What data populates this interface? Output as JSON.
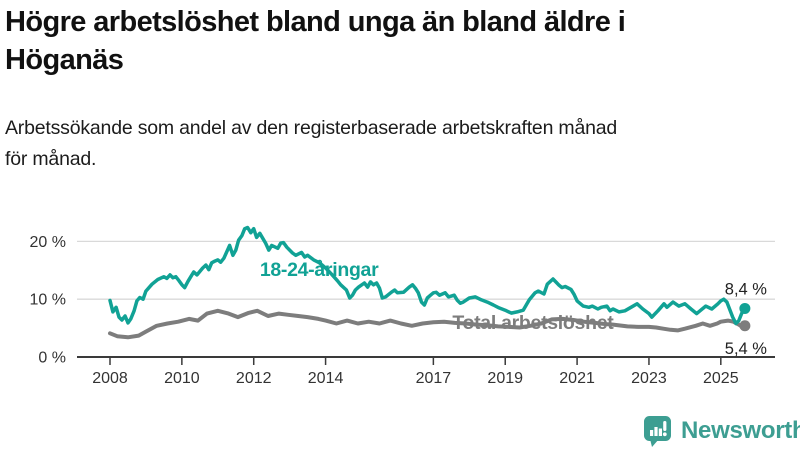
{
  "header": {
    "title_lines": [
      "Högre arbetslöshet bland unga än bland äldre i",
      "Höganäs"
    ],
    "subtitle_lines": [
      "Arbetssökande som andel av den registerbaserade arbetskraften månad",
      "för månad."
    ]
  },
  "branding": {
    "logo_text": "Newsworthy",
    "logo_icon": "newsworthy-speech-bubble-bar-chart-icon",
    "logo_color": "#3d9e92"
  },
  "colors": {
    "youth_line": "#11a295",
    "total_line": "#7d7d7d",
    "grid": "#d9d9d9",
    "axis": "#3a3a3a",
    "tick_text": "#333333",
    "annotation_text": "#222222"
  },
  "chart_data": {
    "type": "line",
    "title": "",
    "xlabel": "",
    "ylabel": "",
    "x_unit": "year (monthly observations)",
    "xlim": [
      2007.6,
      2026.5
    ],
    "ylim": [
      0,
      24
    ],
    "grid": "horizontal",
    "y_ticks": [
      {
        "value": 0,
        "label": "0 %"
      },
      {
        "value": 10,
        "label": "10 %"
      },
      {
        "value": 20,
        "label": "20 %"
      }
    ],
    "x_ticks": [
      {
        "value": 2008,
        "label": "2008"
      },
      {
        "value": 2010,
        "label": "2010"
      },
      {
        "value": 2012,
        "label": "2012"
      },
      {
        "value": 2014,
        "label": "2014"
      },
      {
        "value": 2017,
        "label": "2017"
      },
      {
        "value": 2019,
        "label": "2019"
      },
      {
        "value": 2021,
        "label": "2021"
      },
      {
        "value": 2023,
        "label": "2023"
      },
      {
        "value": 2025,
        "label": "2025"
      }
    ],
    "series": [
      {
        "name": "Total arbetslöshet",
        "id": "total",
        "color": "#7d7d7d",
        "line_width": 4,
        "label_anchor": {
          "year": 2019.77,
          "value": 6.05
        },
        "end_label": "5,4 %",
        "end_value": 5.4,
        "points": [
          [
            2008.0,
            4.1
          ],
          [
            2008.2,
            3.6
          ],
          [
            2008.5,
            3.4
          ],
          [
            2008.8,
            3.7
          ],
          [
            2009.0,
            4.4
          ],
          [
            2009.3,
            5.4
          ],
          [
            2009.6,
            5.8
          ],
          [
            2009.9,
            6.1
          ],
          [
            2010.2,
            6.6
          ],
          [
            2010.45,
            6.3
          ],
          [
            2010.7,
            7.5
          ],
          [
            2011.0,
            8.0
          ],
          [
            2011.3,
            7.5
          ],
          [
            2011.56,
            6.9
          ],
          [
            2011.84,
            7.6
          ],
          [
            2012.1,
            8.0
          ],
          [
            2012.4,
            7.1
          ],
          [
            2012.7,
            7.5
          ],
          [
            2012.96,
            7.3
          ],
          [
            2013.24,
            7.1
          ],
          [
            2013.5,
            6.9
          ],
          [
            2013.8,
            6.6
          ],
          [
            2014.0,
            6.3
          ],
          [
            2014.3,
            5.8
          ],
          [
            2014.6,
            6.3
          ],
          [
            2014.9,
            5.8
          ],
          [
            2015.2,
            6.1
          ],
          [
            2015.5,
            5.8
          ],
          [
            2015.8,
            6.3
          ],
          [
            2016.1,
            5.8
          ],
          [
            2016.4,
            5.4
          ],
          [
            2016.7,
            5.8
          ],
          [
            2017.0,
            6.0
          ],
          [
            2017.3,
            6.1
          ],
          [
            2017.6,
            5.9
          ],
          [
            2017.9,
            5.8
          ],
          [
            2018.2,
            5.6
          ],
          [
            2018.5,
            5.5
          ],
          [
            2018.8,
            5.3
          ],
          [
            2019.1,
            5.2
          ],
          [
            2019.4,
            5.1
          ],
          [
            2019.7,
            5.4
          ],
          [
            2020.0,
            5.8
          ],
          [
            2020.3,
            6.5
          ],
          [
            2020.6,
            6.6
          ],
          [
            2020.9,
            6.4
          ],
          [
            2021.2,
            6.1
          ],
          [
            2021.5,
            5.9
          ],
          [
            2021.8,
            5.7
          ],
          [
            2022.0,
            5.6
          ],
          [
            2022.4,
            5.3
          ],
          [
            2022.7,
            5.2
          ],
          [
            2023.0,
            5.2
          ],
          [
            2023.2,
            5.1
          ],
          [
            2023.4,
            4.9
          ],
          [
            2023.6,
            4.7
          ],
          [
            2023.8,
            4.6
          ],
          [
            2024.0,
            4.9
          ],
          [
            2024.3,
            5.4
          ],
          [
            2024.5,
            5.8
          ],
          [
            2024.7,
            5.4
          ],
          [
            2024.9,
            5.8
          ],
          [
            2025.0,
            6.1
          ],
          [
            2025.2,
            6.3
          ],
          [
            2025.35,
            6.1
          ],
          [
            2025.5,
            5.6
          ],
          [
            2025.58,
            5.3
          ],
          [
            2025.67,
            5.4
          ]
        ]
      },
      {
        "name": "18-24-åringar",
        "id": "youth",
        "color": "#11a295",
        "line_width": 3.5,
        "label_anchor": {
          "year": 2013.82,
          "value": 15.2
        },
        "end_label": "8,4 %",
        "end_value": 8.4,
        "points": [
          [
            2008.0,
            9.8
          ],
          [
            2008.08,
            7.8
          ],
          [
            2008.17,
            8.6
          ],
          [
            2008.25,
            6.9
          ],
          [
            2008.33,
            6.4
          ],
          [
            2008.42,
            7.1
          ],
          [
            2008.5,
            5.9
          ],
          [
            2008.58,
            6.6
          ],
          [
            2008.67,
            8.0
          ],
          [
            2008.75,
            9.7
          ],
          [
            2008.83,
            10.3
          ],
          [
            2008.92,
            10.0
          ],
          [
            2009.0,
            11.4
          ],
          [
            2009.17,
            12.6
          ],
          [
            2009.33,
            13.4
          ],
          [
            2009.5,
            13.9
          ],
          [
            2009.58,
            13.6
          ],
          [
            2009.67,
            14.2
          ],
          [
            2009.75,
            13.7
          ],
          [
            2009.83,
            13.9
          ],
          [
            2009.92,
            13.2
          ],
          [
            2010.0,
            12.5
          ],
          [
            2010.08,
            12.0
          ],
          [
            2010.17,
            13.1
          ],
          [
            2010.25,
            13.9
          ],
          [
            2010.33,
            14.7
          ],
          [
            2010.42,
            14.2
          ],
          [
            2010.58,
            15.4
          ],
          [
            2010.67,
            15.9
          ],
          [
            2010.75,
            15.1
          ],
          [
            2010.83,
            16.3
          ],
          [
            2010.92,
            16.6
          ],
          [
            2011.0,
            16.8
          ],
          [
            2011.08,
            16.4
          ],
          [
            2011.17,
            17.1
          ],
          [
            2011.33,
            19.3
          ],
          [
            2011.42,
            17.6
          ],
          [
            2011.5,
            18.5
          ],
          [
            2011.58,
            20.2
          ],
          [
            2011.67,
            21.0
          ],
          [
            2011.75,
            22.2
          ],
          [
            2011.83,
            22.4
          ],
          [
            2011.92,
            21.5
          ],
          [
            2012.0,
            22.2
          ],
          [
            2012.08,
            20.7
          ],
          [
            2012.17,
            21.4
          ],
          [
            2012.33,
            19.7
          ],
          [
            2012.42,
            18.5
          ],
          [
            2012.5,
            19.3
          ],
          [
            2012.67,
            18.8
          ],
          [
            2012.75,
            19.7
          ],
          [
            2012.83,
            19.8
          ],
          [
            2012.92,
            19.0
          ],
          [
            2013.08,
            18.0
          ],
          [
            2013.17,
            17.6
          ],
          [
            2013.33,
            18.1
          ],
          [
            2013.42,
            17.3
          ],
          [
            2013.5,
            17.6
          ],
          [
            2013.67,
            16.8
          ],
          [
            2013.83,
            16.3
          ],
          [
            2014.0,
            15.4
          ],
          [
            2014.17,
            14.3
          ],
          [
            2014.33,
            13.2
          ],
          [
            2014.42,
            12.5
          ],
          [
            2014.58,
            11.6
          ],
          [
            2014.67,
            10.2
          ],
          [
            2014.75,
            10.7
          ],
          [
            2014.83,
            11.6
          ],
          [
            2014.92,
            12.1
          ],
          [
            2015.08,
            12.8
          ],
          [
            2015.17,
            12.1
          ],
          [
            2015.25,
            13.0
          ],
          [
            2015.33,
            12.5
          ],
          [
            2015.42,
            12.8
          ],
          [
            2015.5,
            11.9
          ],
          [
            2015.58,
            10.2
          ],
          [
            2015.67,
            10.4
          ],
          [
            2015.83,
            11.2
          ],
          [
            2015.92,
            11.6
          ],
          [
            2016.0,
            11.1
          ],
          [
            2016.17,
            11.2
          ],
          [
            2016.33,
            12.1
          ],
          [
            2016.42,
            12.5
          ],
          [
            2016.5,
            11.9
          ],
          [
            2016.58,
            11.1
          ],
          [
            2016.67,
            9.5
          ],
          [
            2016.75,
            9.0
          ],
          [
            2016.83,
            10.2
          ],
          [
            2016.92,
            10.7
          ],
          [
            2017.0,
            11.1
          ],
          [
            2017.08,
            11.2
          ],
          [
            2017.17,
            10.7
          ],
          [
            2017.33,
            11.1
          ],
          [
            2017.42,
            10.4
          ],
          [
            2017.58,
            10.7
          ],
          [
            2017.67,
            9.8
          ],
          [
            2017.75,
            9.3
          ],
          [
            2017.83,
            9.5
          ],
          [
            2018.0,
            10.2
          ],
          [
            2018.17,
            10.4
          ],
          [
            2018.33,
            9.9
          ],
          [
            2018.5,
            9.5
          ],
          [
            2018.67,
            9.0
          ],
          [
            2018.83,
            8.5
          ],
          [
            2019.0,
            8.1
          ],
          [
            2019.17,
            7.6
          ],
          [
            2019.33,
            7.8
          ],
          [
            2019.5,
            8.1
          ],
          [
            2019.67,
            9.9
          ],
          [
            2019.83,
            11.1
          ],
          [
            2019.92,
            11.4
          ],
          [
            2020.08,
            10.9
          ],
          [
            2020.17,
            12.6
          ],
          [
            2020.33,
            13.5
          ],
          [
            2020.42,
            12.9
          ],
          [
            2020.5,
            12.4
          ],
          [
            2020.58,
            12.0
          ],
          [
            2020.67,
            12.2
          ],
          [
            2020.83,
            11.7
          ],
          [
            2020.92,
            10.8
          ],
          [
            2021.0,
            9.7
          ],
          [
            2021.17,
            8.8
          ],
          [
            2021.33,
            8.6
          ],
          [
            2021.42,
            8.8
          ],
          [
            2021.58,
            8.3
          ],
          [
            2021.67,
            8.6
          ],
          [
            2021.83,
            8.8
          ],
          [
            2021.92,
            8.0
          ],
          [
            2022.0,
            8.3
          ],
          [
            2022.17,
            7.8
          ],
          [
            2022.33,
            8.0
          ],
          [
            2022.5,
            8.6
          ],
          [
            2022.67,
            9.2
          ],
          [
            2022.83,
            8.3
          ],
          [
            2023.0,
            7.5
          ],
          [
            2023.08,
            6.9
          ],
          [
            2023.25,
            8.0
          ],
          [
            2023.42,
            9.2
          ],
          [
            2023.5,
            8.6
          ],
          [
            2023.67,
            9.5
          ],
          [
            2023.83,
            8.8
          ],
          [
            2024.0,
            9.2
          ],
          [
            2024.17,
            8.3
          ],
          [
            2024.33,
            7.5
          ],
          [
            2024.42,
            8.0
          ],
          [
            2024.58,
            8.8
          ],
          [
            2024.75,
            8.3
          ],
          [
            2024.92,
            9.2
          ],
          [
            2025.0,
            9.7
          ],
          [
            2025.08,
            10.0
          ],
          [
            2025.17,
            9.5
          ],
          [
            2025.33,
            6.9
          ],
          [
            2025.42,
            5.8
          ],
          [
            2025.5,
            6.3
          ],
          [
            2025.58,
            7.5
          ],
          [
            2025.67,
            8.4
          ]
        ]
      }
    ]
  }
}
